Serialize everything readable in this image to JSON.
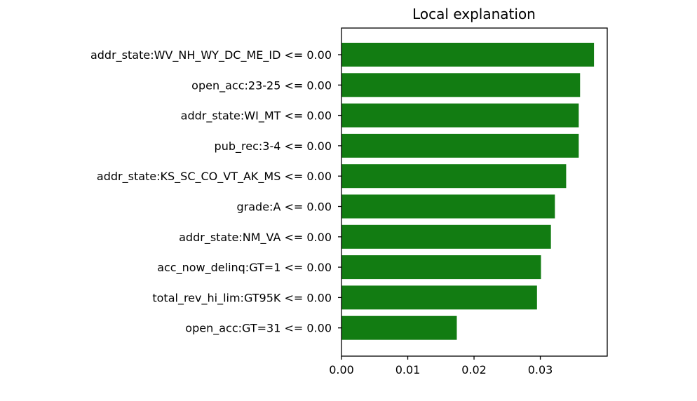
{
  "chart_data": {
    "type": "bar",
    "orientation": "horizontal",
    "title": "Local explanation",
    "xlabel": "",
    "ylabel": "",
    "categories": [
      "addr_state:WV_NH_WY_DC_ME_ID <= 0.00",
      "open_acc:23-25 <= 0.00",
      "addr_state:WI_MT <= 0.00",
      "pub_rec:3-4 <= 0.00",
      "addr_state:KS_SC_CO_VT_AK_MS <= 0.00",
      "grade:A <= 0.00",
      "addr_state:NM_VA <= 0.00",
      "acc_now_delinq:GT=1 <= 0.00",
      "total_rev_hi_lim:GT95K <= 0.00",
      "open_acc:GT=31 <= 0.00"
    ],
    "values": [
      0.0381,
      0.036,
      0.0358,
      0.0358,
      0.0339,
      0.0322,
      0.0316,
      0.0301,
      0.0295,
      0.0174
    ],
    "xlim": [
      0.0,
      0.0401
    ],
    "xticks": [
      0.0,
      0.01,
      0.02,
      0.03
    ],
    "xtick_labels": [
      "0.00",
      "0.01",
      "0.02",
      "0.03"
    ],
    "bar_color": "#127c12",
    "grid": false,
    "legend": "none"
  }
}
